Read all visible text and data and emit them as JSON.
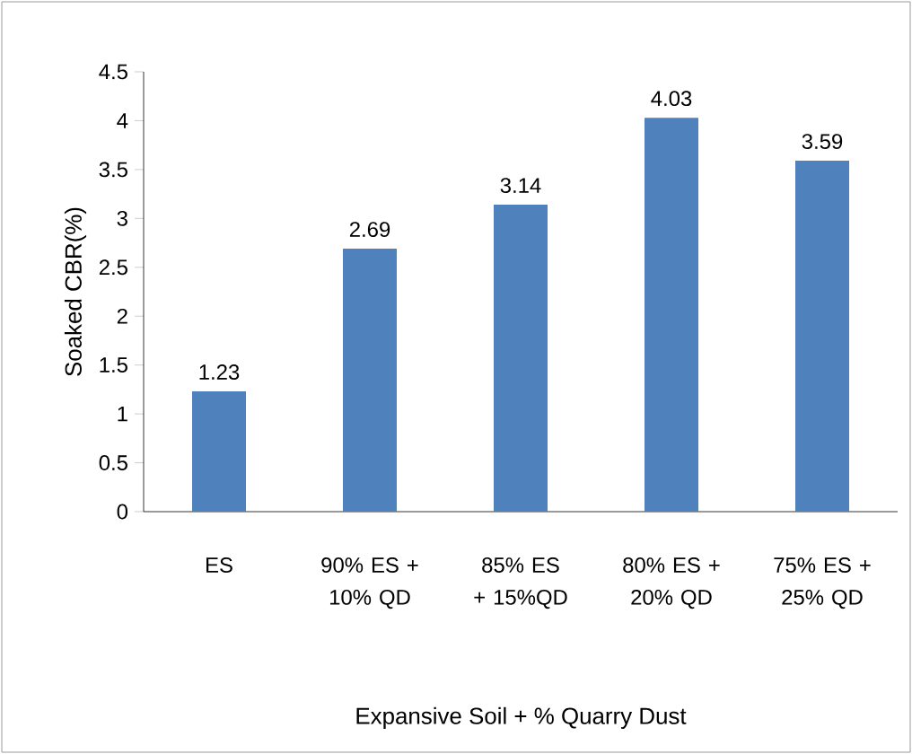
{
  "chart_data": {
    "type": "bar",
    "xlabel": "Expansive Soil + % Quarry Dust",
    "ylabel": "Soaked CBR(%)",
    "categories": [
      "ES",
      "90% ES + 10% QD",
      "85% ES + 15%QD",
      "80%  ES + 20% QD",
      "75% ES + 25% QD"
    ],
    "values": [
      1.23,
      2.69,
      3.14,
      4.03,
      3.59
    ],
    "color": "#4f81bd",
    "ylim": [
      0,
      4.5
    ],
    "yticks": [
      0,
      0.5,
      1,
      1.5,
      2,
      2.5,
      3,
      3.5,
      4,
      4.5
    ],
    "data_labels": true,
    "grid": false
  }
}
